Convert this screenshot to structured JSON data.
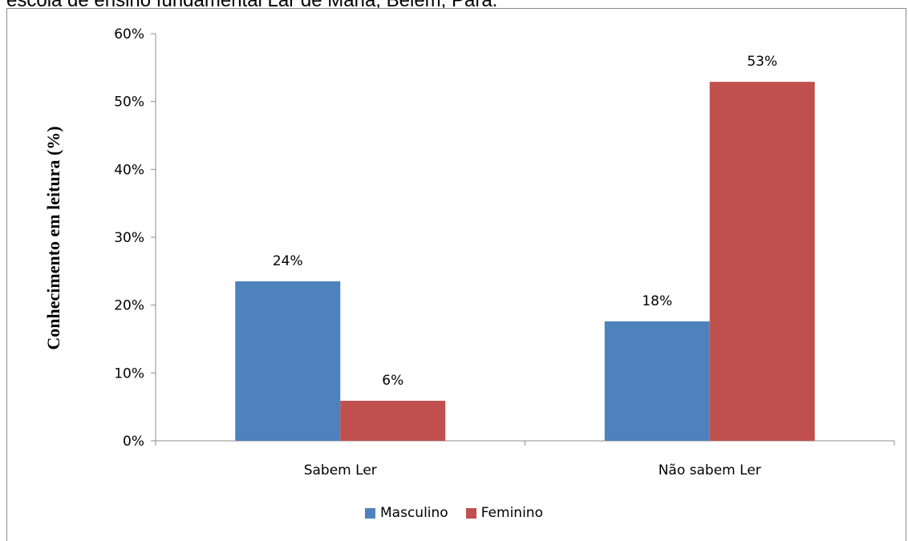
{
  "caption": "escola de ensino fundamental Lar de Maria, Belém, Pará.",
  "chart_data": {
    "type": "bar",
    "categories": [
      "Sabem Ler",
      "Não sabem Ler"
    ],
    "series": [
      {
        "name": "Masculino",
        "values": [
          23.5,
          17.6
        ],
        "labels": [
          "24%",
          "18%"
        ],
        "color": "#4f81bd"
      },
      {
        "name": "Feminino",
        "values": [
          5.9,
          52.9
        ],
        "labels": [
          "6%",
          "53%"
        ],
        "color": "#c0504d"
      }
    ],
    "ylabel": "Conhecimento em leitura (%)",
    "yticks": [
      "0%",
      "10%",
      "20%",
      "30%",
      "40%",
      "50%",
      "60%"
    ],
    "ylim": [
      0,
      60
    ],
    "legend_position": "bottom",
    "grid": false
  }
}
